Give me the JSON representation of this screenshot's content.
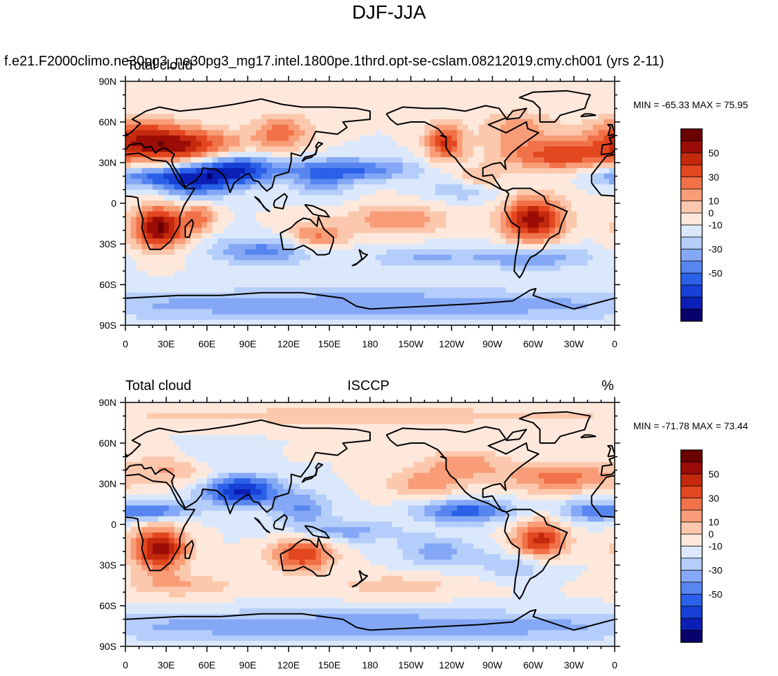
{
  "figure": {
    "title": "DJF-JJA",
    "case_title": "f.e21.F2000climo.ne30pg3_ne30pg3_mg17.intel.1800pe.1thrd.opt-se-cslam.08212019.cmy.ch001 (yrs 2-11)"
  },
  "colors": {
    "levels": [
      "#08006b",
      "#0b1fb4",
      "#1741d6",
      "#2a61e8",
      "#5886f0",
      "#84a8f5",
      "#b4cdfa",
      "#dbe8fc",
      "#fde8db",
      "#fcc8ad",
      "#f89d77",
      "#f17248",
      "#e2471f",
      "#c4290e",
      "#9a0c05",
      "#6b0000"
    ],
    "frame": "#000000",
    "coast": "#000000"
  },
  "colorbar": {
    "tick_labels": [
      "50",
      "30",
      "10",
      "0",
      "-10",
      "-30",
      "-50"
    ],
    "levels": [
      -70,
      -60,
      -50,
      -40,
      -30,
      -20,
      -10,
      0,
      10,
      20,
      30,
      40,
      50,
      60,
      70
    ]
  },
  "axes": {
    "lon_labels": [
      "0",
      "30E",
      "60E",
      "90E",
      "120E",
      "150E",
      "180",
      "150W",
      "120W",
      "90W",
      "60W",
      "30W",
      "0"
    ],
    "lat_labels": [
      "90N",
      "60N",
      "30N",
      "0",
      "30S",
      "60S",
      "90S"
    ]
  },
  "panels": [
    {
      "name": "model",
      "left_label": "Total cloud",
      "center_label": "",
      "right_label": "",
      "min_max_text": "MIN = -65.33 MAX =  75.95",
      "field_label": "model"
    },
    {
      "name": "obs",
      "left_label": "Total cloud",
      "center_label": "ISCCP",
      "right_label": "%",
      "min_max_text": "MIN = -71.78 MAX =  73.44",
      "field_label": "isccp"
    }
  ],
  "chart_data": {
    "type": "contour-map",
    "title": "DJF-JJA",
    "variable": "Total cloud",
    "units": "%",
    "projection": "cylindrical equidistant",
    "xlim": [
      0,
      360
    ],
    "ylim": [
      -90,
      90
    ],
    "contour_levels": [
      -70,
      -60,
      -50,
      -40,
      -30,
      -20,
      -10,
      0,
      10,
      20,
      30,
      40,
      50,
      60,
      70
    ],
    "series": [
      {
        "name": "",
        "min": -65.33,
        "max": 75.95
      },
      {
        "name": "ISCCP",
        "min": -71.78,
        "max": 73.44
      }
    ]
  }
}
